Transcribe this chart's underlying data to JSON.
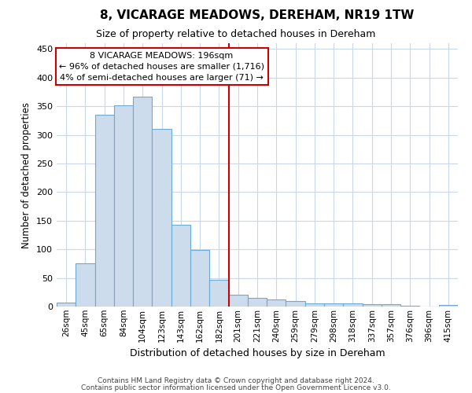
{
  "title": "8, VICARAGE MEADOWS, DEREHAM, NR19 1TW",
  "subtitle": "Size of property relative to detached houses in Dereham",
  "xlabel": "Distribution of detached houses by size in Dereham",
  "ylabel": "Number of detached properties",
  "categories": [
    "26sqm",
    "45sqm",
    "65sqm",
    "84sqm",
    "104sqm",
    "123sqm",
    "143sqm",
    "162sqm",
    "182sqm",
    "201sqm",
    "221sqm",
    "240sqm",
    "259sqm",
    "279sqm",
    "298sqm",
    "318sqm",
    "337sqm",
    "357sqm",
    "376sqm",
    "396sqm",
    "415sqm"
  ],
  "values": [
    7,
    75,
    335,
    352,
    367,
    310,
    143,
    99,
    47,
    20,
    15,
    12,
    10,
    5,
    6,
    5,
    4,
    4,
    2,
    0,
    3
  ],
  "bar_color": "#ccdcec",
  "bar_edgecolor": "#6aaad4",
  "vline_color": "#cc0000",
  "vline_x_index": 9,
  "annotation_text": "8 VICARAGE MEADOWS: 196sqm\n← 96% of detached houses are smaller (1,716)\n4% of semi-detached houses are larger (71) →",
  "annotation_box_facecolor": "#ffffff",
  "annotation_box_edgecolor": "#cc0000",
  "ylim": [
    0,
    460
  ],
  "yticks": [
    0,
    50,
    100,
    150,
    200,
    250,
    300,
    350,
    400,
    450
  ],
  "footer1": "Contains HM Land Registry data © Crown copyright and database right 2024.",
  "footer2": "Contains public sector information licensed under the Open Government Licence v3.0.",
  "bg_color": "#ffffff",
  "grid_color": "#c8d8e8"
}
